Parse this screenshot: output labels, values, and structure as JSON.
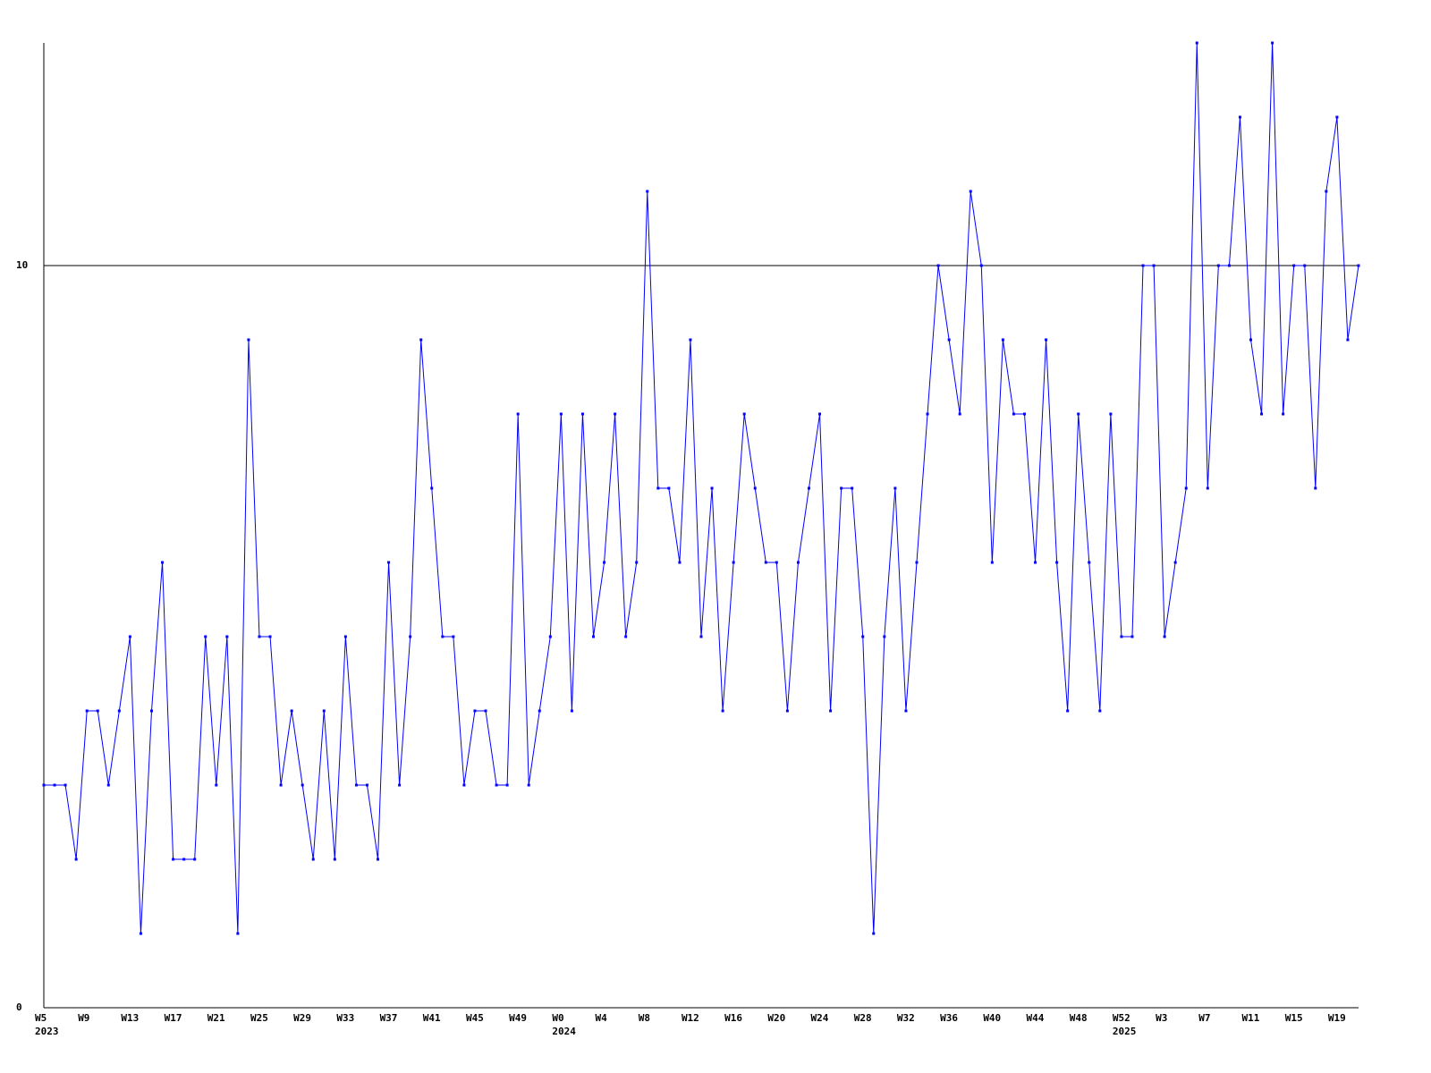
{
  "chart_data": {
    "type": "line",
    "categories": [
      "W5",
      null,
      null,
      null,
      "W9",
      null,
      null,
      null,
      "W13",
      null,
      null,
      null,
      "W17",
      null,
      null,
      null,
      "W21",
      null,
      null,
      null,
      "W25",
      null,
      null,
      null,
      "W29",
      null,
      null,
      null,
      "W33",
      null,
      null,
      null,
      "W37",
      null,
      null,
      null,
      "W41",
      null,
      null,
      null,
      "W45",
      null,
      null,
      null,
      "W49",
      null,
      null,
      null,
      "W0",
      null,
      null,
      null,
      "W4",
      null,
      null,
      null,
      "W8",
      null,
      null,
      null,
      "W12",
      null,
      null,
      null,
      "W16",
      null,
      null,
      null,
      "W20",
      null,
      null,
      null,
      "W24",
      null,
      null,
      null,
      "W28",
      null,
      null,
      null,
      "W32",
      null,
      null,
      null,
      "W36",
      null,
      null,
      null,
      "W40",
      null,
      null,
      null,
      "W44",
      null,
      null,
      null,
      "W48",
      null,
      null,
      null,
      "W52",
      null,
      null,
      null,
      "W3",
      null,
      null,
      null,
      "W7",
      null,
      null,
      null,
      "W11",
      null,
      null,
      null,
      "W15",
      null,
      null,
      null,
      "W19",
      null,
      null
    ],
    "category_years": [
      "2023",
      null,
      null,
      null,
      null,
      null,
      null,
      null,
      null,
      null,
      null,
      null,
      null,
      null,
      null,
      null,
      null,
      null,
      null,
      null,
      null,
      null,
      null,
      null,
      null,
      null,
      null,
      null,
      null,
      null,
      null,
      null,
      null,
      null,
      null,
      null,
      null,
      null,
      null,
      null,
      null,
      null,
      null,
      null,
      null,
      null,
      null,
      null,
      "2024",
      null,
      null,
      null,
      null,
      null,
      null,
      null,
      null,
      null,
      null,
      null,
      null,
      null,
      null,
      null,
      null,
      null,
      null,
      null,
      null,
      null,
      null,
      null,
      null,
      null,
      null,
      null,
      null,
      null,
      null,
      null,
      null,
      null,
      null,
      null,
      null,
      null,
      null,
      null,
      null,
      null,
      null,
      null,
      null,
      null,
      null,
      null,
      null,
      null,
      null,
      null,
      "2025",
      null,
      null,
      null,
      null,
      null,
      null,
      null,
      null,
      null,
      null,
      null,
      null,
      null,
      null,
      null,
      null,
      null,
      null,
      null,
      null,
      null
    ],
    "series": [
      {
        "color": "#0000ff",
        "values": [
          3,
          3,
          3,
          2,
          4,
          4,
          3,
          4,
          5,
          1,
          4,
          6,
          2,
          2,
          2,
          5,
          3,
          5,
          1,
          9,
          5,
          5,
          3,
          4,
          3,
          2,
          4,
          2,
          5,
          3,
          3,
          2,
          6,
          3,
          5,
          9,
          7,
          5,
          5,
          3,
          4,
          4,
          3,
          3,
          8,
          3,
          4,
          5,
          8,
          4,
          8,
          5,
          6,
          8,
          5,
          6,
          11,
          7,
          7,
          6,
          9,
          5,
          7,
          4,
          6,
          8,
          7,
          6,
          6,
          4,
          6,
          7,
          8,
          4,
          7,
          7,
          5,
          1,
          5,
          7,
          4,
          6,
          8,
          10,
          9,
          8,
          11,
          10,
          6,
          9,
          8,
          8,
          6,
          9,
          6,
          4,
          8,
          6,
          4,
          8,
          5,
          5,
          10,
          10,
          5,
          6,
          7,
          13,
          7,
          10,
          10,
          12,
          9,
          8,
          13,
          8,
          10,
          10,
          7,
          11,
          12,
          9,
          10
        ]
      }
    ],
    "ylim": [
      0,
      13
    ],
    "yticks": [
      0,
      10
    ],
    "grid": true
  }
}
